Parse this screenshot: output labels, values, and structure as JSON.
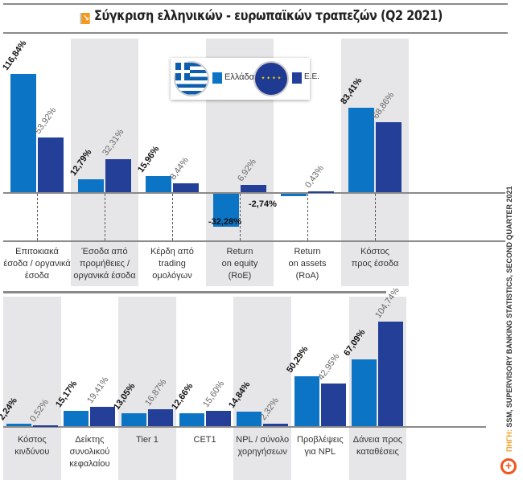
{
  "title": "Σύγκριση ελληνικών - ευρωπαϊκών τραπεζών (Q2 2021)",
  "legend": [
    {
      "label": "Ελλάδα",
      "color": "#0b74c4",
      "icon": "greek-flag-icon"
    },
    {
      "label": "Ε.Ε.",
      "color": "#233f98",
      "icon": "eu-flag-icon"
    }
  ],
  "source_prefix": "ΠΗΓΗ:",
  "source": "SSM, SUPERVISORY BANKING STATISTICS, SECOND QUARTER 2021",
  "chart_data": [
    {
      "type": "bar",
      "categories": [
        "Επιτοκιακά\nέσοδα / οργανικά\nέσοδα",
        "Έσοδα από\nπρομήθειες /\nοργανικά έσοδα",
        "Κέρδη από\ntrading\nομολόγων",
        "Return\non equity\n(RoE)",
        "Return\non assets\n(RoA)",
        "Κόστος\nπρος έσοδα"
      ],
      "series": [
        {
          "name": "Ελλάδα",
          "values": [
            116.84,
            12.79,
            15.96,
            -32.28,
            -2.74,
            83.41
          ],
          "labels": [
            "116,84%",
            "12,79%",
            "15,96%",
            "-32,28%",
            "-2,74%",
            "83,41%"
          ]
        },
        {
          "name": "Ε.Ε.",
          "values": [
            53.92,
            32.31,
            8.44,
            6.92,
            0.43,
            68.86
          ],
          "labels": [
            "53,92%",
            "32,31%",
            "8,44%",
            "6,92%",
            "0,43%",
            "68,86%"
          ]
        }
      ]
    },
    {
      "type": "bar",
      "categories": [
        "Κόστος\nκινδύνου",
        "Δείκτης\nσυνολικού\nκεφαλαίου",
        "Tier 1",
        "CET1",
        "NPL / σύνολο\nχορηγήσεων",
        "Προβλέψεις\nγια NPL",
        "Δάνεια προς\nκαταθέσεις"
      ],
      "series": [
        {
          "name": "Ελλάδα",
          "values": [
            2.24,
            15.17,
            13.05,
            12.66,
            14.84,
            50.29,
            67.09
          ],
          "labels": [
            "2,24%",
            "15,17%",
            "13,05%",
            "12,66%",
            "14,84%",
            "50,29%",
            "67,09%"
          ]
        },
        {
          "name": "Ε.Ε.",
          "values": [
            0.52,
            19.41,
            16.87,
            15.6,
            2.32,
            42.95,
            104.74
          ],
          "labels": [
            "0,52%",
            "19,41%",
            "16,87%",
            "15,60%",
            "2,32%",
            "42,95%",
            "104,74%"
          ]
        }
      ]
    }
  ]
}
